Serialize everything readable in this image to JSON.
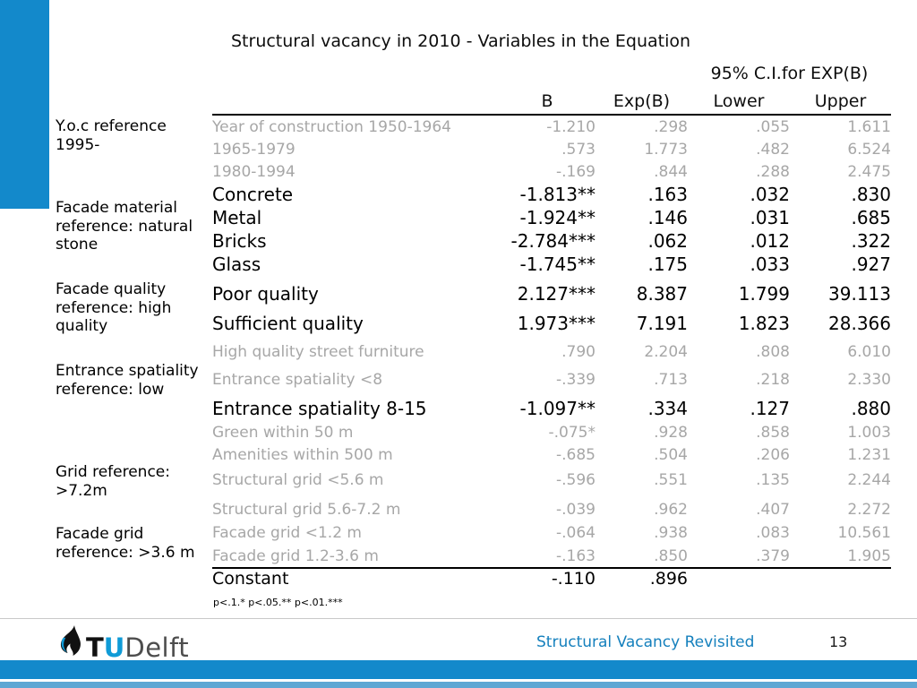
{
  "slide": {
    "title": "Structural vacancy in 2010 - Variables in the Equation",
    "footnote": "p<.1.* p<.05.** p<.01.***"
  },
  "colors": {
    "accent_blue": "#1389cb",
    "light_bar_blue": "#5ea7d4",
    "caption_blue": "#1580bd",
    "muted_text_gray": "#a7a7a7"
  },
  "table": {
    "ci_header": "95% C.I.for EXP(B)",
    "columns": [
      "B",
      "Exp(B)",
      "Lower",
      "Upper"
    ],
    "groups": [
      {
        "label": "Y.o.c reference\n1995-"
      },
      {
        "label": "Facade material\nreference: natural\nstone"
      },
      {
        "label": "Facade quality\nreference: high\nquality"
      },
      {
        "label": "Entrance spatiality\nreference: low"
      },
      {
        "label": "Grid reference:\n>7.2m"
      },
      {
        "label": "Facade grid\nreference: >3.6 m"
      }
    ],
    "rows": [
      {
        "label": "Year of construction 1950-1964",
        "b": "-1.210",
        "exp_b": ".298",
        "lower": ".055",
        "upper": "1.611",
        "style": "muted"
      },
      {
        "label": "1965-1979",
        "b": ".573",
        "exp_b": "1.773",
        "lower": ".482",
        "upper": "6.524",
        "style": "muted"
      },
      {
        "label": "1980-1994",
        "b": "-.169",
        "exp_b": ".844",
        "lower": ".288",
        "upper": "2.475",
        "style": "muted"
      },
      {
        "label": "Concrete",
        "b": "-1.813**",
        "exp_b": ".163",
        "lower": ".032",
        "upper": ".830",
        "style": "strong"
      },
      {
        "label": "Metal",
        "b": "-1.924**",
        "exp_b": ".146",
        "lower": ".031",
        "upper": ".685",
        "style": "strong"
      },
      {
        "label": "Bricks",
        "b": "-2.784***",
        "exp_b": ".062",
        "lower": ".012",
        "upper": ".322",
        "style": "strong"
      },
      {
        "label": "Glass",
        "b": "-1.745**",
        "exp_b": ".175",
        "lower": ".033",
        "upper": ".927",
        "style": "strong"
      },
      {
        "label": "Poor quality",
        "b": "2.127***",
        "exp_b": "8.387",
        "lower": "1.799",
        "upper": "39.113",
        "style": "strong"
      },
      {
        "label": "Sufficient quality",
        "b": "1.973***",
        "exp_b": "7.191",
        "lower": "1.823",
        "upper": "28.366",
        "style": "strong"
      },
      {
        "label": "High quality street furniture",
        "b": ".790",
        "exp_b": "2.204",
        "lower": ".808",
        "upper": "6.010",
        "style": "muted"
      },
      {
        "label": "Entrance spatiality <8",
        "b": "-.339",
        "exp_b": ".713",
        "lower": ".218",
        "upper": "2.330",
        "style": "muted"
      },
      {
        "label": "Entrance spatiality 8-15",
        "b": "-1.097**",
        "exp_b": ".334",
        "lower": ".127",
        "upper": ".880",
        "style": "strong"
      },
      {
        "label": "Green within 50 m",
        "b": "-.075*",
        "exp_b": ".928",
        "lower": ".858",
        "upper": "1.003",
        "style": "muted"
      },
      {
        "label": "Amenities within 500 m",
        "b": "-.685",
        "exp_b": ".504",
        "lower": ".206",
        "upper": "1.231",
        "style": "muted"
      },
      {
        "label": "Structural grid <5.6 m",
        "b": "-.596",
        "exp_b": ".551",
        "lower": ".135",
        "upper": "2.244",
        "style": "muted"
      },
      {
        "label": "Structural grid 5.6-7.2 m",
        "b": "-.039",
        "exp_b": ".962",
        "lower": ".407",
        "upper": "2.272",
        "style": "muted"
      },
      {
        "label": "Facade grid <1.2 m",
        "b": "-.064",
        "exp_b": ".938",
        "lower": ".083",
        "upper": "10.561",
        "style": "muted"
      },
      {
        "label": "Facade grid 1.2-3.6 m",
        "b": "-.163",
        "exp_b": ".850",
        "lower": ".379",
        "upper": "1.905",
        "style": "muted"
      },
      {
        "label": "Constant",
        "b": "-.110",
        "exp_b": ".896",
        "lower": "",
        "upper": "",
        "style": "constant"
      }
    ]
  },
  "footer": {
    "logo_t": "T",
    "logo_u": "U",
    "logo_delft": "Delft",
    "caption": "Structural Vacancy Revisited",
    "page_number": "13"
  }
}
